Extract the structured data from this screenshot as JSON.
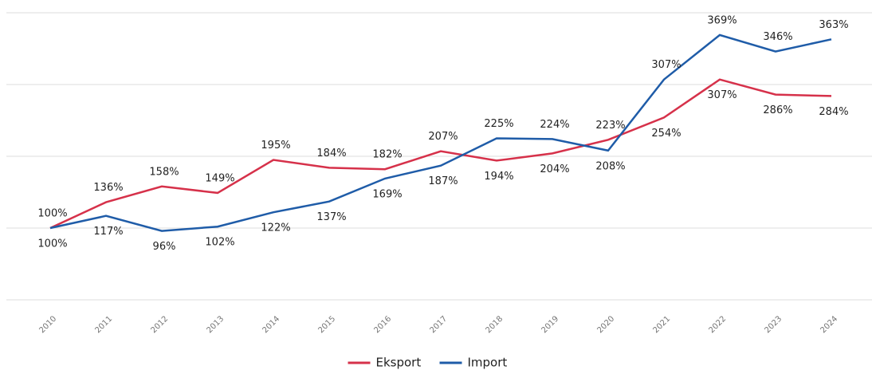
{
  "chart_data": {
    "type": "line",
    "categories": [
      "2010",
      "2011",
      "2012",
      "2013",
      "2014",
      "2015",
      "2016",
      "2017",
      "2018",
      "2019",
      "2020",
      "2021",
      "2022",
      "2023",
      "2024"
    ],
    "series": [
      {
        "name": "Eksport",
        "color": "#d6314a",
        "values": [
          100,
          136,
          158,
          149,
          195,
          184,
          182,
          207,
          194,
          204,
          223,
          254,
          307,
          286,
          284
        ],
        "value_labels": [
          "100%",
          "136%",
          "158%",
          "149%",
          "195%",
          "184%",
          "182%",
          "207%",
          "194%",
          "204%",
          "223%",
          "254%",
          "307%",
          "286%",
          "284%"
        ]
      },
      {
        "name": "Import",
        "color": "#1f5ca8",
        "values": [
          100,
          117,
          96,
          102,
          122,
          137,
          169,
          187,
          225,
          224,
          208,
          307,
          369,
          346,
          363
        ],
        "value_labels": [
          "100%",
          "117%",
          "96%",
          "102%",
          "122%",
          "137%",
          "169%",
          "187%",
          "225%",
          "224%",
          "208%",
          "307%",
          "369%",
          "346%",
          "363%"
        ]
      }
    ],
    "ylim": [
      0,
      400
    ],
    "yticks": [
      0,
      100,
      200,
      300,
      400
    ],
    "grid": true,
    "legend": "bottom"
  }
}
